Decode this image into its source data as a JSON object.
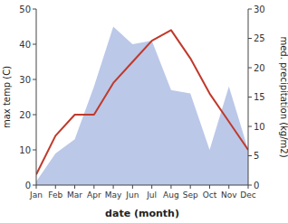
{
  "chart_data": {
    "type": "line",
    "xlabel": "date (month)",
    "ylabel": "max temp (C)",
    "y2label": "med. precipitation (kg/m2)",
    "categories": [
      "Jan",
      "Feb",
      "Mar",
      "Apr",
      "May",
      "Jun",
      "Jul",
      "Aug",
      "Sep",
      "Oct",
      "Nov",
      "Dec"
    ],
    "series": [
      {
        "type": "area",
        "color": "#bbc8e8",
        "values": [
          1,
          9,
          13,
          28,
          45,
          40,
          41,
          27,
          26,
          10,
          28,
          10
        ]
      },
      {
        "type": "line",
        "color": "#c0392b",
        "values": [
          3,
          14,
          20,
          20,
          29,
          35,
          41,
          44,
          36,
          26,
          18,
          10
        ]
      }
    ],
    "ylim": [
      0,
      50
    ],
    "yticks": [
      0,
      10,
      20,
      30,
      40,
      50
    ],
    "y2lim": [
      0,
      30
    ],
    "y2ticks": [
      0,
      5,
      10,
      15,
      20,
      25,
      30
    ],
    "grid": false
  }
}
